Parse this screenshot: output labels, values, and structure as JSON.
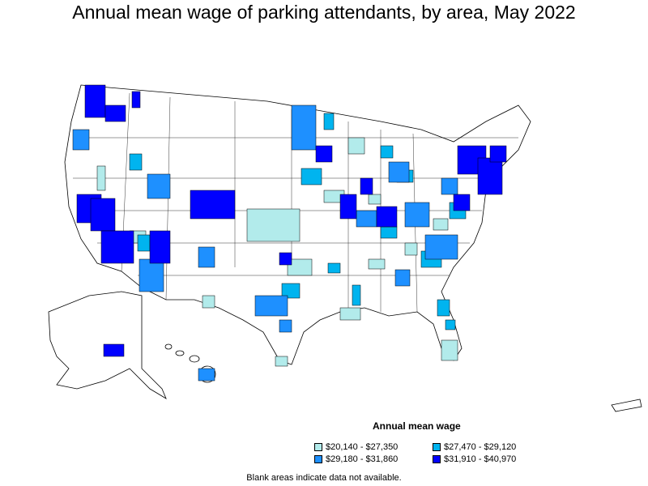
{
  "title": "Annual mean wage of parking attendants, by area, May 2022",
  "legend": {
    "title": "Annual mean wage",
    "items": [
      {
        "label": "$20,140 - $27,350",
        "color": "#b2ebeb"
      },
      {
        "label": "$27,470 - $29,120",
        "color": "#00b4ef"
      },
      {
        "label": "$29,180 - $31,860",
        "color": "#1e90ff"
      },
      {
        "label": "$31,910 - $40,970",
        "color": "#0000ff"
      }
    ]
  },
  "note": "Blank areas indicate data not available."
}
